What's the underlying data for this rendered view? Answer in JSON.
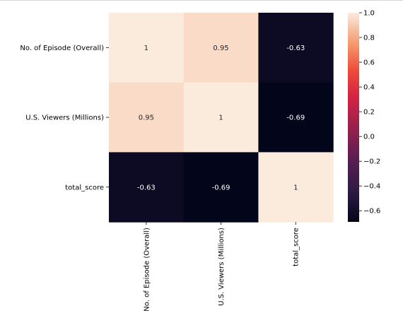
{
  "chart_data": {
    "type": "heatmap",
    "row_labels": [
      "No. of Episode (Overall)",
      "U.S. Viewers (Millions)",
      "total_score"
    ],
    "col_labels": [
      "No. of Episode (Overall)",
      "U.S. Viewers (Millions)",
      "total_score"
    ],
    "values": [
      [
        1,
        0.95,
        -0.63
      ],
      [
        0.95,
        1,
        -0.69
      ],
      [
        -0.63,
        -0.69,
        1
      ]
    ],
    "cell_text": [
      [
        "1",
        "0.95",
        "-0.63"
      ],
      [
        "0.95",
        "1",
        "-0.69"
      ],
      [
        "-0.63",
        "-0.69",
        "1"
      ]
    ],
    "colormap": "rocket",
    "vmin": -0.69,
    "vmax": 1.0,
    "colorbar": {
      "ticks": [
        1.0,
        0.8,
        0.6,
        0.4,
        0.2,
        0.0,
        -0.2,
        -0.4,
        -0.6
      ],
      "tick_labels": [
        "1.0",
        "0.8",
        "0.6",
        "0.4",
        "0.2",
        "0.0",
        "−0.2",
        "−0.4",
        "−0.6"
      ],
      "placement": "right"
    }
  }
}
